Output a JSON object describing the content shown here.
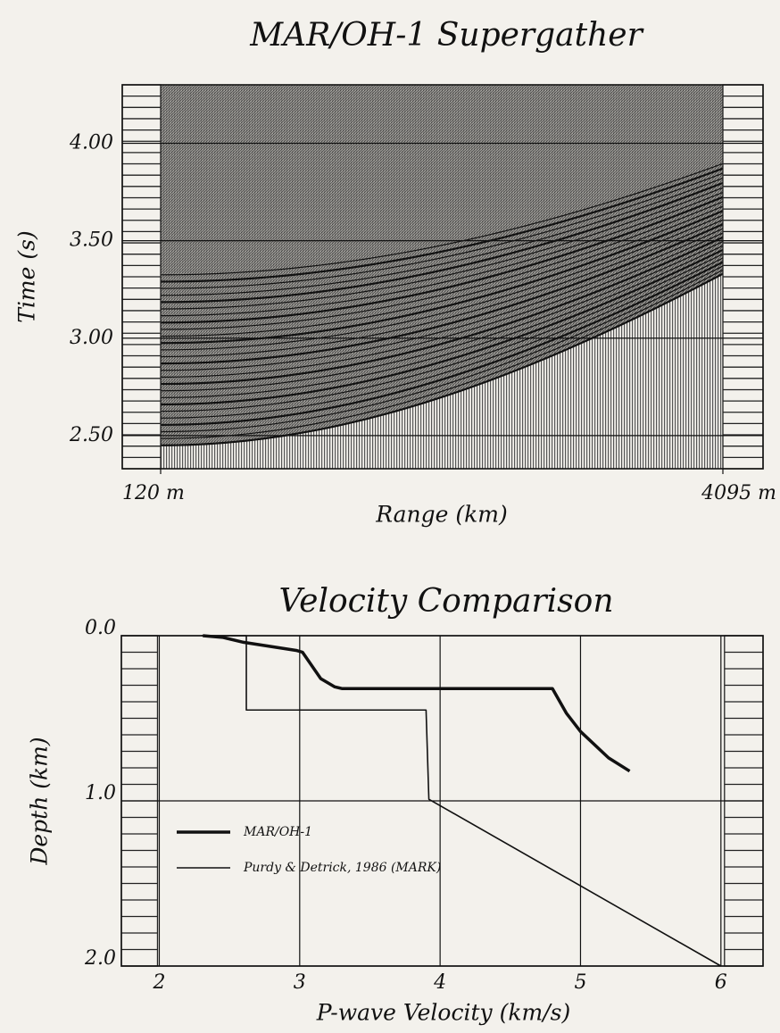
{
  "chart_data": [
    {
      "type": "seismic",
      "title": "MAR/OH-1 Supergather",
      "x_label": "Range (km)",
      "y_label": "Time (s)",
      "xlim": [
        120,
        4095
      ],
      "xticks": [
        {
          "value": 120,
          "label": "120 m"
        },
        {
          "value": 4095,
          "label": "4095 m"
        }
      ],
      "ylim": [
        2.33,
        4.3
      ],
      "yticks": [
        {
          "value": 2.5,
          "label": "2.50"
        },
        {
          "value": 3,
          "label": "3.00"
        },
        {
          "value": 3.5,
          "label": "3.50"
        },
        {
          "value": 4,
          "label": "4.00"
        }
      ],
      "grid": true
    },
    {
      "type": "line",
      "title": "Velocity Comparison",
      "x_label": "P-wave Velocity (km/s)",
      "y_label": "Depth (km)",
      "xlim": [
        1.73,
        6.3
      ],
      "xticks": [
        2,
        3,
        4,
        5,
        6
      ],
      "ylim": [
        0,
        2
      ],
      "y_inverted": true,
      "yticks": [
        {
          "value": 0,
          "label": "0.0"
        },
        {
          "value": 1,
          "label": "1.0"
        },
        {
          "value": 2,
          "label": "2.0"
        }
      ],
      "grid": true,
      "legend": "lower left",
      "series": [
        {
          "name": "MAR/OH-1",
          "color": "#111111",
          "line_width": 3.5,
          "x": [
            2.31,
            2.45,
            2.6,
            2.98,
            3.02,
            3.15,
            3.25,
            3.3,
            4.8,
            4.9,
            5.0,
            5.2,
            5.35
          ],
          "values": [
            0.0,
            0.01,
            0.04,
            0.09,
            0.1,
            0.26,
            0.31,
            0.32,
            0.32,
            0.47,
            0.58,
            0.74,
            0.82
          ]
        },
        {
          "name": "Purdy & Detrick, 1986 (MARK)",
          "color": "#111111",
          "line_width": 1.6,
          "x": [
            2.3,
            2.62,
            2.62,
            3.9,
            3.92,
            6.0
          ],
          "values": [
            0.0,
            0.0,
            0.45,
            0.45,
            0.99,
            2.0
          ]
        }
      ]
    }
  ]
}
